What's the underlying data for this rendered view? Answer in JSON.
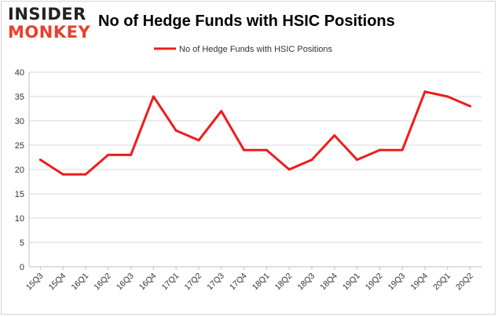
{
  "logo": {
    "line1": "INSIDER",
    "line2": "MONKEY"
  },
  "chart_data": {
    "type": "line",
    "title": "No of Hedge Funds with HSIC Positions",
    "categories": [
      "15Q3",
      "15Q4",
      "16Q1",
      "16Q2",
      "16Q3",
      "16Q4",
      "17Q1",
      "17Q2",
      "17Q3",
      "17Q4",
      "18Q1",
      "18Q2",
      "18Q3",
      "18Q4",
      "19Q1",
      "19Q2",
      "19Q3",
      "19Q4",
      "20Q1",
      "20Q2"
    ],
    "series": [
      {
        "name": "No of Hedge Funds with HSIC Positions",
        "values": [
          22,
          19,
          19,
          23,
          23,
          35,
          28,
          26,
          32,
          24,
          24,
          20,
          22,
          27,
          22,
          24,
          24,
          36,
          35,
          33
        ]
      }
    ],
    "ylim": [
      0,
      40
    ],
    "yticks": [
      0,
      5,
      10,
      15,
      20,
      25,
      30,
      35,
      40
    ],
    "grid": true,
    "legend": "top-center",
    "colors": {
      "line": "#ee1c1c",
      "grid": "#d9d9d9",
      "logo_accent": "#e8412b"
    }
  }
}
